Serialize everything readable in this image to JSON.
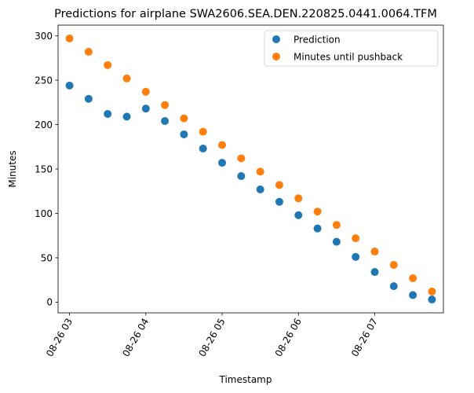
{
  "chart_data": {
    "type": "scatter",
    "title": "Predictions for airplane SWA2606.SEA.DEN.220825.0441.0064.TFM",
    "xlabel": "Timestamp",
    "ylabel": "Minutes",
    "x": [
      "2022-08-26 03:00",
      "2022-08-26 03:15",
      "2022-08-26 03:30",
      "2022-08-26 03:45",
      "2022-08-26 04:00",
      "2022-08-26 04:15",
      "2022-08-26 04:30",
      "2022-08-26 04:45",
      "2022-08-26 05:00",
      "2022-08-26 05:15",
      "2022-08-26 05:30",
      "2022-08-26 05:45",
      "2022-08-26 06:00",
      "2022-08-26 06:15",
      "2022-08-26 06:30",
      "2022-08-26 06:45",
      "2022-08-26 07:00",
      "2022-08-26 07:15",
      "2022-08-26 07:30",
      "2022-08-26 07:45"
    ],
    "xticks": [
      "08-26 03",
      "08-26 04",
      "08-26 05",
      "08-26 06",
      "08-26 07"
    ],
    "xtick_values": [
      "2022-08-26 03:00",
      "2022-08-26 04:00",
      "2022-08-26 05:00",
      "2022-08-26 06:00",
      "2022-08-26 07:00"
    ],
    "xlim": [
      "2022-08-26 02:51",
      "2022-08-26 07:54"
    ],
    "yticks": [
      0,
      50,
      100,
      150,
      200,
      250,
      300
    ],
    "ylim": [
      -12,
      312
    ],
    "grid": false,
    "legend_position": "top-right",
    "series": [
      {
        "name": "Prediction",
        "color": "#1f77b4",
        "values": [
          244,
          229,
          212,
          209,
          218,
          204,
          189,
          173,
          157,
          142,
          127,
          113,
          98,
          83,
          68,
          51,
          34,
          18,
          8,
          3
        ]
      },
      {
        "name": "Minutes until pushback",
        "color": "#ff7f0e",
        "values": [
          297,
          282,
          267,
          252,
          237,
          222,
          207,
          192,
          177,
          162,
          147,
          132,
          117,
          102,
          87,
          72,
          57,
          42,
          27,
          12
        ]
      }
    ]
  }
}
